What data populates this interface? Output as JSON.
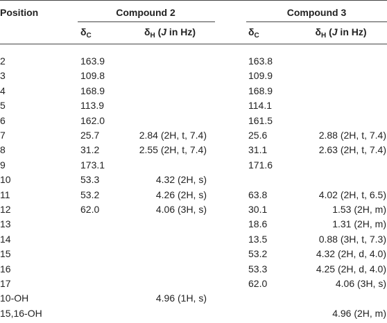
{
  "table": {
    "header": {
      "position": "Position",
      "compounds": [
        "Compound 2",
        "Compound 3"
      ]
    },
    "subheader": {
      "carbon": {
        "symbol": "δ",
        "sub": "C"
      },
      "proton": {
        "symbol": "δ",
        "sub": "H",
        "open": " (",
        "j": "J",
        "rest": " in Hz)"
      }
    },
    "rows": [
      [
        "2",
        "163.9",
        null,
        "163.8",
        null
      ],
      [
        "3",
        "109.8",
        null,
        "109.9",
        null
      ],
      [
        "4",
        "168.9",
        null,
        "168.9",
        null
      ],
      [
        "5",
        "113.9",
        null,
        "114.1",
        null
      ],
      [
        "6",
        "162.0",
        null,
        "161.5",
        null
      ],
      [
        "7",
        "25.7",
        "2.84 (2H, t, 7.4)",
        "25.6",
        "2.88 (2H, t, 7.4)"
      ],
      [
        "8",
        "31.2",
        "2.55 (2H, t, 7.4)",
        "31.1",
        "2.63 (2H, t, 7.4)"
      ],
      [
        "9",
        "173.1",
        null,
        "171.6",
        null
      ],
      [
        "10",
        "53.3",
        "4.32 (2H, s)",
        null,
        null
      ],
      [
        "11",
        "53.2",
        "4.26 (2H, s)",
        "63.8",
        "4.02 (2H, t, 6.5)"
      ],
      [
        "12",
        "62.0",
        "4.06 (3H, s)",
        "30.1",
        "1.53 (2H, m)"
      ],
      [
        "13",
        null,
        null,
        "18.6",
        "1.31 (2H, m)"
      ],
      [
        "14",
        null,
        null,
        "13.5",
        "0.88 (3H, t, 7.3)"
      ],
      [
        "15",
        null,
        null,
        "53.2",
        "4.32 (2H, d, 4.0)"
      ],
      [
        "16",
        null,
        null,
        "53.3",
        "4.25 (2H, d, 4.0)"
      ],
      [
        "17",
        null,
        null,
        "62.0",
        "4.06 (3H, s)"
      ],
      [
        "10-OH",
        null,
        "4.96 (1H, s)",
        null,
        null
      ],
      [
        "15,16-OH",
        null,
        null,
        null,
        "4.96 (2H, m)"
      ]
    ]
  }
}
